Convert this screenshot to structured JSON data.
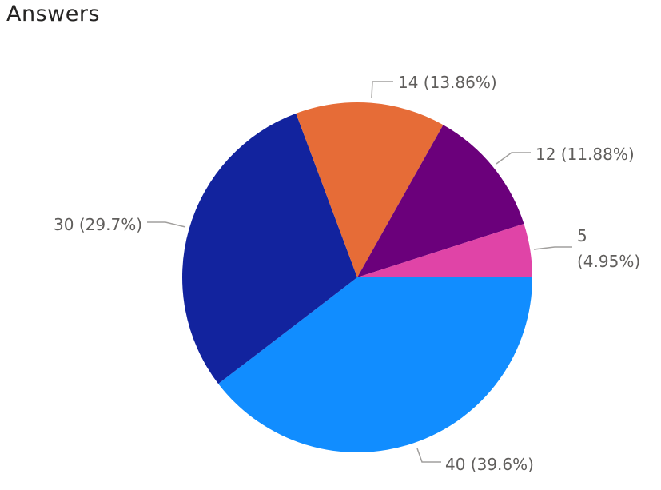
{
  "chart_data": {
    "type": "pie",
    "title": "Answers",
    "slices": [
      {
        "value": 40,
        "percent": "39.6%",
        "color": "#118DFF",
        "label_lines": [
          "40 (39.6%)"
        ]
      },
      {
        "value": 30,
        "percent": "29.7%",
        "color": "#12239E",
        "label_lines": [
          "30 (29.7%)"
        ]
      },
      {
        "value": 14,
        "percent": "13.86%",
        "color": "#E66C37",
        "label_lines": [
          "14 (13.86%)"
        ]
      },
      {
        "value": 12,
        "percent": "11.88%",
        "color": "#6B007B",
        "label_lines": [
          "12 (11.88%)"
        ]
      },
      {
        "value": 5,
        "percent": "4.95%",
        "color": "#E044A7",
        "label_lines": [
          "5",
          "(4.95%)"
        ]
      }
    ]
  }
}
